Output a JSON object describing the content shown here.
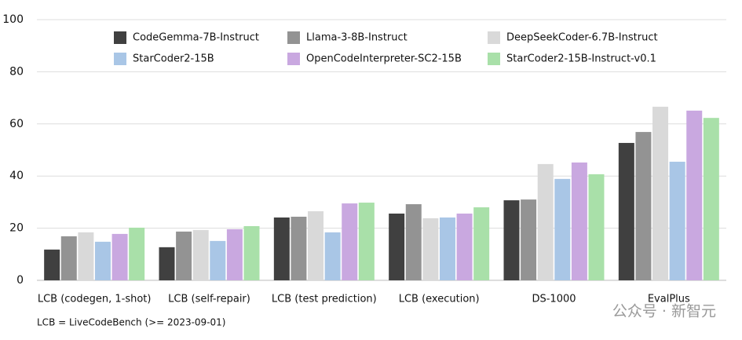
{
  "chart_data": {
    "type": "bar",
    "categories": [
      "LCB (codegen, 1-shot)",
      "LCB (self-repair)",
      "LCB (test prediction)",
      "LCB (execution)",
      "DS-1000",
      "EvalPlus"
    ],
    "series": [
      {
        "name": "CodeGemma-7B-Instruct",
        "color": "#404040",
        "values": [
          11.8,
          12.7,
          24.1,
          25.6,
          30.7,
          52.7
        ]
      },
      {
        "name": "Llama-3-8B-Instruct",
        "color": "#939393",
        "values": [
          16.9,
          18.7,
          24.4,
          29.2,
          31.0,
          56.9
        ]
      },
      {
        "name": "DeepSeekCoder-6.7B-Instruct",
        "color": "#d9d9d9",
        "values": [
          18.4,
          19.3,
          26.5,
          23.8,
          44.6,
          66.6
        ]
      },
      {
        "name": "StarCoder2-15B",
        "color": "#a9c6e6",
        "values": [
          14.8,
          15.1,
          18.4,
          24.1,
          38.9,
          45.5
        ]
      },
      {
        "name": "OpenCodeInterpreter-SC2-15B",
        "color": "#c9a8e0",
        "values": [
          17.8,
          19.6,
          29.5,
          25.6,
          45.2,
          65.1
        ]
      },
      {
        "name": "StarCoder2-15B-Instruct-v0.1",
        "color": "#a9e0a9",
        "values": [
          20.2,
          20.8,
          29.8,
          28.0,
          40.7,
          62.3
        ]
      }
    ],
    "ylim": [
      0,
      100
    ],
    "yticks": [
      0,
      20,
      40,
      60,
      80,
      100
    ],
    "grid": true,
    "footnote": "LCB = LiveCodeBench (>= 2023-09-01)",
    "watermark": "公众号 · 新智元"
  }
}
